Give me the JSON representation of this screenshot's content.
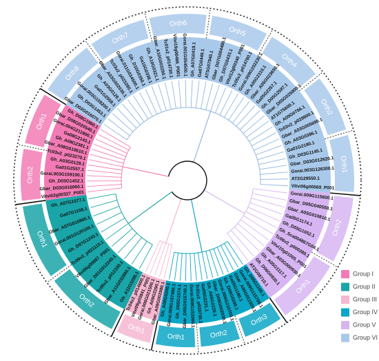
{
  "groups": [
    {
      "name": "Group I",
      "color": "#f27bb5",
      "orthologs": [
        "Orth2",
        "Orth1"
      ],
      "leaves": [
        "Vitvi02g00327_P001",
        "Gbar_D03G016060.1",
        "Gh_D03G1452.1",
        "Gorai.003G159100.1",
        "Ga01G2557.1",
        "Gh_A03G0129.1",
        "Tc03v2_p023270.1",
        "Gbar_A08G019610.1",
        "Gh_A08G2381.1",
        "Ga08G2143.1",
        "Gorai.004G211800.1",
        "Gbar_D08G020540.1",
        "Gh_D08G1960.1"
      ]
    },
    {
      "name": "Group VI",
      "color": "#a9c9ea",
      "orthologs": [
        "Orth8",
        "Orth7",
        "Orth6",
        "Orth5",
        "Orth4",
        "Orth2",
        "Orth1"
      ],
      "leaves": [
        "Gbar_D03G016070.1",
        "Gh_D03G1453.1",
        "Gorai.003G159200.1",
        "Ga01G2558.1",
        "Gh_A03G0128.1",
        "Gbar_A03G002030.1",
        "Tc03v2_p023280.1",
        "Gorai.011G034500.1",
        "Gh_D10G0350.1",
        "Ga10G0338.1",
        "Gh_A10G0321.1",
        "Gbar_A10G003290.1",
        "Tc01v2_p014730.1",
        "Vitvi19g00486_P001",
        "Gorai.001G054500.1",
        "Gh_A07G0419.1",
        "Ga07G0449.1",
        "AT5G07940.1",
        "Gbar_D07G004490.1",
        "Gh_D07G0433.1",
        "Vitvi12g00340_P001",
        "Tc05v2_p014780.1",
        "Gorai.009G202230.1",
        "Gh_A05G2310.1",
        "Gbar_A05G023650.1",
        "Ga05G2357.1",
        "Gh_D05G2597.1",
        "Gbar_D05G025900.1",
        "AT1G75600.1",
        "Gh_A09G0766.1",
        "Tc03v2_p029900.1",
        "Gbar_A03G005690.1",
        "Gh_A03G0396.1",
        "Ga01G2180.1",
        "Gh_D03G1145.1",
        "Gbar_D03G012620.1",
        "Gorai.003G126300.1",
        "AT2G29550.1",
        "Vitvi06g00569_P001"
      ]
    },
    {
      "name": "Group V",
      "color": "#d7b5f2",
      "orthologs": [
        "Orth2",
        "Orth1"
      ],
      "leaves": [
        "Gorai.009G115600.1",
        "Gbar_D05G040550.1",
        "Gbar_A05G010810.1",
        "Ga05G1174.1",
        "Gh_D05G1052.1",
        "Gh_Sca004867G04.1",
        "Tc06v2_p000280.1",
        "Vitvi10g01005_P001",
        "Gbar_A03G000930.1",
        "Gh_A05G1117.1",
        "Gh_D06G0930.1",
        "AT2G08710.1"
      ]
    },
    {
      "name": "Group IV",
      "color": "#0aa6c6",
      "orthologs": [
        "Orth3",
        "Orth2",
        "Orth1"
      ],
      "leaves": [
        "Gh_D05G1100.1",
        "Gorai.009G115700.1",
        "Gbar_A05G011020.1",
        "Ga05G1180.1",
        "Gh_D09G0200.1",
        "Gorai.006G210700.1",
        "Gbar_D09G002030.1",
        "Gh_A05G2220.1",
        "Ga05G2231.1",
        "Tc01v2_p033730.1",
        "Gorai.009G153300.1",
        "Gbar_D05G015740.1",
        "Gh_D05G1574.1",
        "Gorai.009G197400.1",
        "Gh_A09G0200.1"
      ]
    },
    {
      "name": "Group III",
      "color": "#f6b7d1",
      "orthologs": [
        "Orth1"
      ],
      "leaves": [
        "Gbar_A09G002980.1",
        "Gh_A09G2290.1",
        "Gorai.006G021500.1",
        "Vitvi09g00841_P001",
        "Tc04v2_p014600.1"
      ]
    },
    {
      "name": "Group II",
      "color": "#1aa5a8",
      "orthologs": [
        "Orth2",
        "Orth1"
      ],
      "leaves": [
        "Gh_A11G3288.1",
        "Gbar_A11G032880.1",
        "Tc05v2_p012330.1",
        "Gbar_D01G012240.1",
        "Vitvi06g00887_P001",
        "Tc09v2_p021110.1",
        "Gh_D07G1243.1",
        "Gorai.001G120100.1",
        "Gbar_A07G010800.1",
        "Ga07G1108.1",
        "Gh_A07G1077.1"
      ]
    }
  ]
}
